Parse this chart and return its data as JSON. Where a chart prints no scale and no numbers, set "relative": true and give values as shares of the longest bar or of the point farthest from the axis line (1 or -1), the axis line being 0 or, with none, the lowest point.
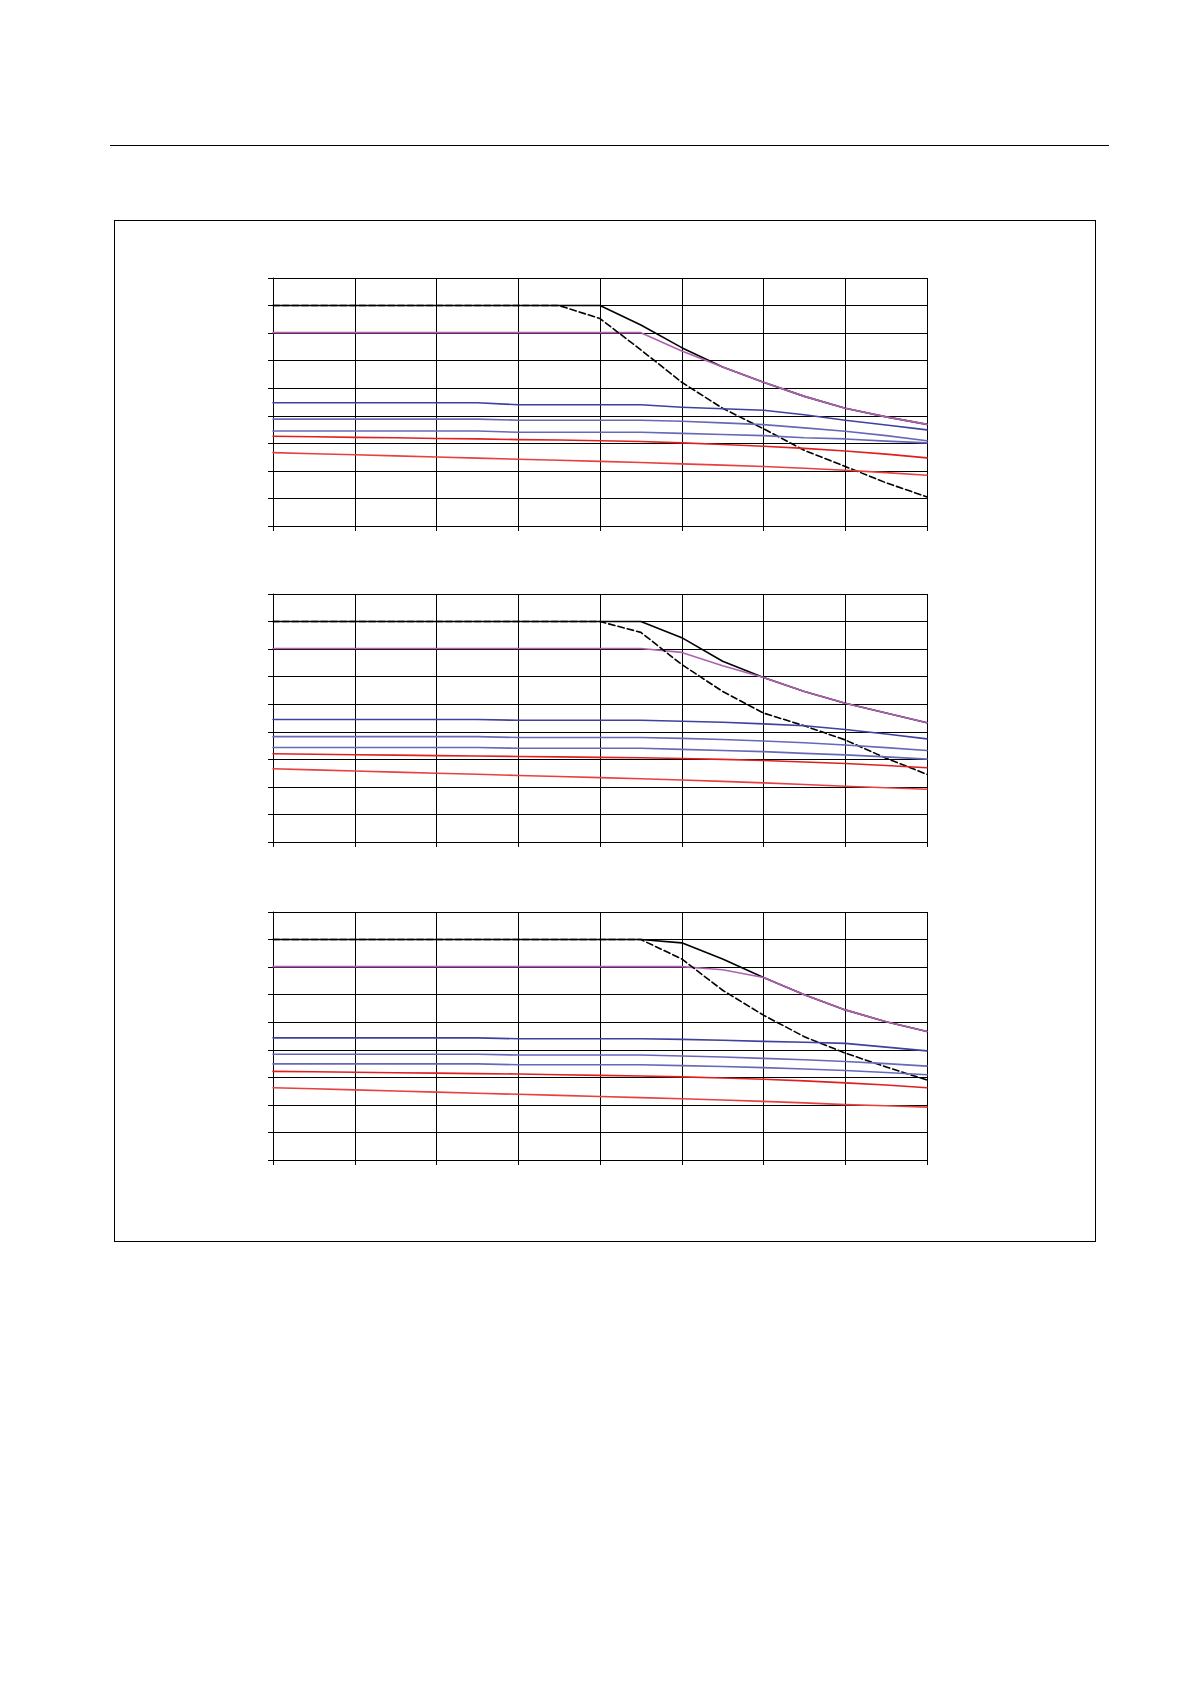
{
  "chart_data": [
    {
      "type": "line",
      "relative": true,
      "grid": true,
      "marker": "none",
      "categories": [
        null,
        null,
        null,
        null,
        null,
        null,
        null,
        null,
        null,
        null,
        null,
        null,
        null,
        null,
        null,
        null,
        null
      ],
      "series": [
        {
          "color": "#000000",
          "values": [
            1,
            1,
            1,
            1,
            1,
            1,
            1,
            1,
            1,
            0.912,
            0.809,
            0.721,
            0.652,
            0.588,
            0.534,
            0.495,
            0.461
          ]
        },
        {
          "color": "#b060b0",
          "values": [
            0.877,
            0.877,
            0.877,
            0.877,
            0.877,
            0.877,
            0.877,
            0.877,
            0.877,
            0.877,
            0.794,
            0.721,
            0.652,
            0.588,
            0.534,
            0.495,
            0.461
          ]
        },
        {
          "color": "#000000",
          "line_style": "dashed",
          "values": [
            1,
            1,
            1,
            1,
            1,
            1,
            1,
            1,
            0.941,
            0.799,
            0.652,
            0.534,
            0.441,
            0.343,
            0.27,
            0.196,
            0.132
          ]
        },
        {
          "color": "#4040a0",
          "values": [
            0.559,
            0.559,
            0.559,
            0.559,
            0.559,
            0.559,
            0.55,
            0.55,
            0.55,
            0.55,
            0.539,
            0.532,
            0.525,
            0.505,
            0.48,
            0.458,
            0.436
          ]
        },
        {
          "color": "#6868b8",
          "values": [
            0.485,
            0.485,
            0.485,
            0.485,
            0.485,
            0.485,
            0.48,
            0.48,
            0.48,
            0.48,
            0.475,
            0.468,
            0.46,
            0.445,
            0.43,
            0.41,
            0.387
          ]
        },
        {
          "color": "#6868b8",
          "values": [
            0.431,
            0.431,
            0.431,
            0.431,
            0.431,
            0.431,
            0.425,
            0.425,
            0.425,
            0.425,
            0.42,
            0.415,
            0.41,
            0.4,
            0.395,
            0.385,
            0.377
          ]
        },
        {
          "color": "#e02020",
          "values": [
            0.407,
            0.405,
            0.402,
            0.4,
            0.397,
            0.395,
            0.392,
            0.39,
            0.387,
            0.383,
            0.377,
            0.37,
            0.362,
            0.352,
            0.34,
            0.326,
            0.309
          ]
        },
        {
          "color": "#e84040",
          "values": [
            0.333,
            0.328,
            0.323,
            0.318,
            0.313,
            0.308,
            0.303,
            0.298,
            0.293,
            0.288,
            0.282,
            0.276,
            0.27,
            0.262,
            0.253,
            0.242,
            0.23
          ]
        }
      ]
    },
    {
      "type": "line",
      "relative": true,
      "grid": true,
      "marker": "none",
      "categories": [
        null,
        null,
        null,
        null,
        null,
        null,
        null,
        null,
        null,
        null,
        null,
        null,
        null,
        null,
        null,
        null,
        null
      ],
      "series": [
        {
          "color": "#000000",
          "values": [
            1,
            1,
            1,
            1,
            1,
            1,
            1,
            1,
            1,
            1,
            0.927,
            0.82,
            0.746,
            0.683,
            0.629,
            0.585,
            0.541
          ]
        },
        {
          "color": "#b060b0",
          "values": [
            0.878,
            0.878,
            0.878,
            0.878,
            0.878,
            0.878,
            0.878,
            0.878,
            0.878,
            0.878,
            0.86,
            0.8,
            0.746,
            0.683,
            0.629,
            0.585,
            0.541
          ]
        },
        {
          "color": "#000000",
          "line_style": "dashed",
          "values": [
            1,
            1,
            1,
            1,
            1,
            1,
            1,
            1,
            1,
            0.951,
            0.805,
            0.683,
            0.585,
            0.527,
            0.463,
            0.38,
            0.307
          ]
        },
        {
          "color": "#4040a0",
          "values": [
            0.556,
            0.556,
            0.556,
            0.556,
            0.556,
            0.556,
            0.552,
            0.552,
            0.552,
            0.552,
            0.548,
            0.543,
            0.536,
            0.527,
            0.51,
            0.49,
            0.468
          ]
        },
        {
          "color": "#6868b8",
          "values": [
            0.478,
            0.478,
            0.478,
            0.478,
            0.478,
            0.478,
            0.474,
            0.474,
            0.474,
            0.474,
            0.47,
            0.465,
            0.458,
            0.45,
            0.44,
            0.428,
            0.415
          ]
        },
        {
          "color": "#6868b8",
          "values": [
            0.429,
            0.429,
            0.429,
            0.429,
            0.429,
            0.429,
            0.425,
            0.425,
            0.425,
            0.425,
            0.42,
            0.415,
            0.41,
            0.402,
            0.395,
            0.386,
            0.376
          ]
        },
        {
          "color": "#e02020",
          "values": [
            0.4,
            0.398,
            0.396,
            0.394,
            0.392,
            0.39,
            0.388,
            0.386,
            0.384,
            0.382,
            0.379,
            0.375,
            0.37,
            0.363,
            0.356,
            0.347,
            0.337
          ]
        },
        {
          "color": "#e84040",
          "values": [
            0.332,
            0.327,
            0.322,
            0.317,
            0.312,
            0.307,
            0.302,
            0.297,
            0.292,
            0.287,
            0.281,
            0.275,
            0.268,
            0.261,
            0.253,
            0.246,
            0.239
          ]
        }
      ]
    },
    {
      "type": "line",
      "relative": true,
      "grid": true,
      "marker": "none",
      "categories": [
        null,
        null,
        null,
        null,
        null,
        null,
        null,
        null,
        null,
        null,
        null,
        null,
        null,
        null,
        null,
        null,
        null
      ],
      "series": [
        {
          "color": "#000000",
          "values": [
            1,
            1,
            1,
            1,
            1,
            1,
            1,
            1,
            1,
            1,
            0.985,
            0.912,
            0.828,
            0.75,
            0.681,
            0.627,
            0.583
          ]
        },
        {
          "color": "#b060b0",
          "values": [
            0.877,
            0.877,
            0.877,
            0.877,
            0.877,
            0.877,
            0.877,
            0.877,
            0.877,
            0.877,
            0.877,
            0.863,
            0.828,
            0.75,
            0.681,
            0.627,
            0.583
          ]
        },
        {
          "color": "#000000",
          "line_style": "dashed",
          "values": [
            1,
            1,
            1,
            1,
            1,
            1,
            1,
            1,
            1,
            1,
            0.912,
            0.77,
            0.657,
            0.559,
            0.485,
            0.422,
            0.363
          ]
        },
        {
          "color": "#4040a0",
          "values": [
            0.554,
            0.554,
            0.554,
            0.554,
            0.554,
            0.554,
            0.55,
            0.55,
            0.55,
            0.55,
            0.547,
            0.543,
            0.538,
            0.534,
            0.529,
            0.512,
            0.495
          ]
        },
        {
          "color": "#6868b8",
          "values": [
            0.48,
            0.48,
            0.48,
            0.48,
            0.48,
            0.48,
            0.476,
            0.476,
            0.476,
            0.476,
            0.472,
            0.467,
            0.461,
            0.455,
            0.447,
            0.437,
            0.426
          ]
        },
        {
          "color": "#6868b8",
          "values": [
            0.436,
            0.436,
            0.436,
            0.436,
            0.436,
            0.436,
            0.432,
            0.432,
            0.432,
            0.432,
            0.428,
            0.424,
            0.419,
            0.413,
            0.406,
            0.397,
            0.387
          ]
        },
        {
          "color": "#e02020",
          "values": [
            0.402,
            0.4,
            0.398,
            0.396,
            0.394,
            0.392,
            0.39,
            0.387,
            0.384,
            0.381,
            0.377,
            0.372,
            0.366,
            0.359,
            0.35,
            0.34,
            0.328
          ]
        },
        {
          "color": "#e84040",
          "values": [
            0.328,
            0.323,
            0.318,
            0.313,
            0.308,
            0.303,
            0.298,
            0.293,
            0.288,
            0.283,
            0.278,
            0.272,
            0.266,
            0.259,
            0.251,
            0.246,
            0.24
          ]
        }
      ]
    }
  ]
}
